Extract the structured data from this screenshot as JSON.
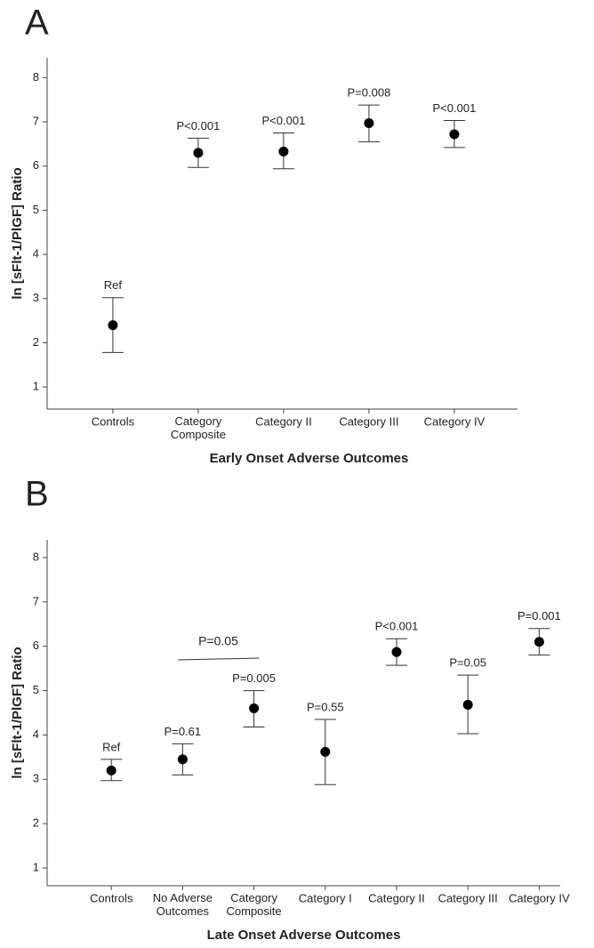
{
  "chart_data": [
    {
      "type": "errorbar",
      "panel": "A",
      "xlabel": "Early Onset Adverse Outcomes",
      "ylabel": "ln [sFlt-1/PlGF] Ratio",
      "categories": [
        "Controls",
        "Category\nComposite",
        "Category II",
        "Category III",
        "Category IV"
      ],
      "values": [
        2.4,
        6.3,
        6.33,
        6.97,
        6.72
      ],
      "lower": [
        1.78,
        5.97,
        5.94,
        6.55,
        6.42
      ],
      "upper": [
        3.02,
        6.63,
        6.75,
        7.38,
        7.03
      ],
      "labels": [
        "Ref",
        "P<0.001",
        "P<0.001",
        "P=0.008",
        "P<0.001"
      ],
      "color": "#000000",
      "ylim": [
        0.5,
        8.45
      ],
      "yticks": [
        1,
        2,
        3,
        4,
        5,
        6,
        7,
        8
      ],
      "grid": false
    },
    {
      "type": "errorbar",
      "panel": "B",
      "xlabel": "Late Onset Adverse Outcomes",
      "ylabel": "ln [sFlt-1/PlGF] Ratio",
      "categories": [
        "Controls",
        "No Adverse\nOutcomes",
        "Category\nComposite",
        "Category I",
        "Category II",
        "Category III",
        "Category IV"
      ],
      "values": [
        3.2,
        3.45,
        4.6,
        3.62,
        5.87,
        4.68,
        6.1
      ],
      "lower": [
        2.97,
        3.1,
        4.18,
        2.88,
        5.57,
        4.03,
        5.8
      ],
      "upper": [
        3.45,
        3.8,
        5.0,
        4.35,
        6.17,
        5.35,
        6.4
      ],
      "labels": [
        "Ref",
        "P=0.61",
        "P=0.005",
        "P=0.55",
        "P<0.001",
        "P=0.05",
        "P=0.001"
      ],
      "bracket": "P=0.05",
      "color": "#000000",
      "ylim": [
        0.6,
        8.4
      ],
      "yticks": [
        1,
        2,
        3,
        4,
        5,
        6,
        7,
        8
      ],
      "grid": false
    }
  ]
}
